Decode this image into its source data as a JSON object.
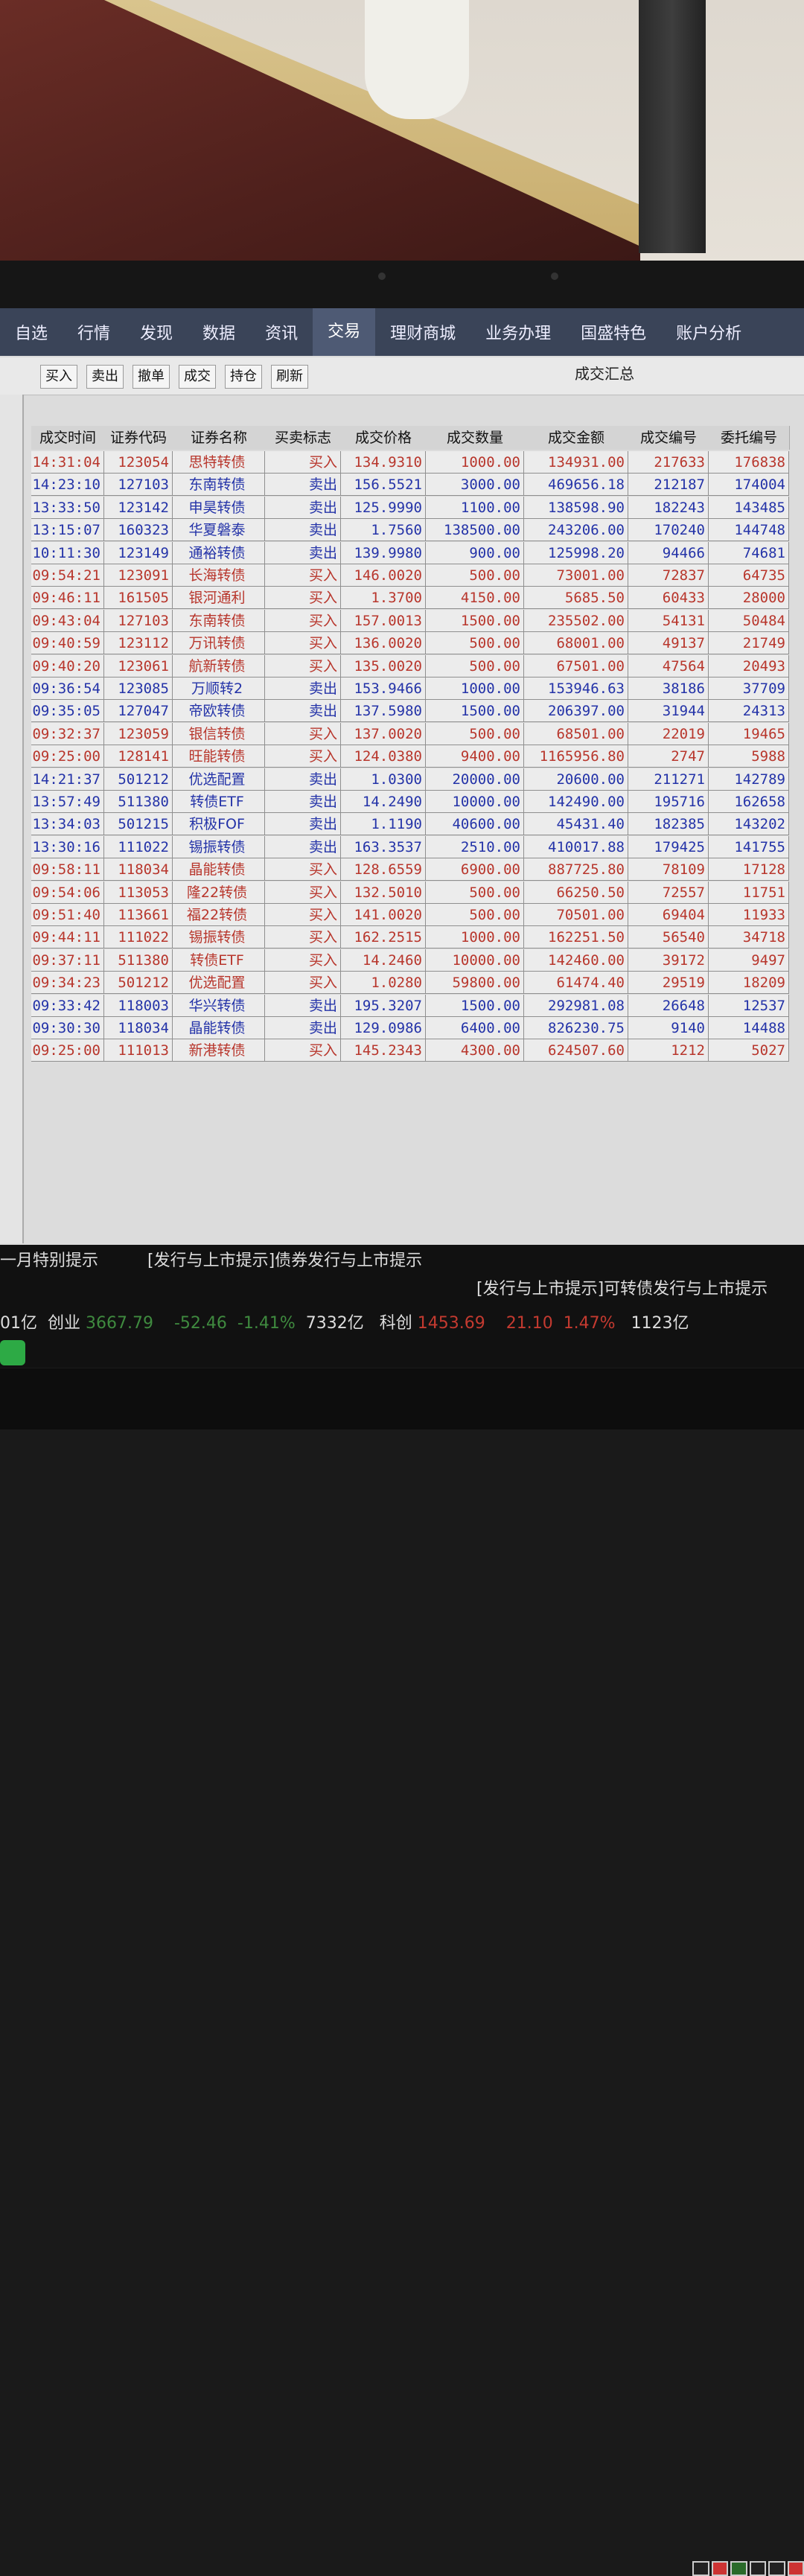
{
  "menu": [
    "自选",
    "行情",
    "发现",
    "数据",
    "资讯",
    "交易",
    "理财商城",
    "业务办理",
    "国盛特色",
    "账户分析"
  ],
  "menu_active": "交易",
  "toolbar": {
    "buy": "买入",
    "sell": "卖出",
    "cancel": "撤单",
    "deals": "成交",
    "holdings": "持仓",
    "refresh": "刷新"
  },
  "panel_title": "成交汇总",
  "columns": [
    "成交时间",
    "证券代码",
    "证券名称",
    "买卖标志",
    "成交价格",
    "成交数量",
    "成交金额",
    "成交编号",
    "委托编号"
  ],
  "colors": {
    "buy": "#b8362c",
    "sell": "#2433a8",
    "menubar": "#3a4458"
  },
  "rows": [
    [
      "14:31:04",
      "123054",
      "思特转债",
      "买入",
      "134.9310",
      "1000.00",
      "134931.00",
      "217633",
      "176838"
    ],
    [
      "14:23:10",
      "127103",
      "东南转债",
      "卖出",
      "156.5521",
      "3000.00",
      "469656.18",
      "212187",
      "174004"
    ],
    [
      "13:33:50",
      "123142",
      "申昊转债",
      "卖出",
      "125.9990",
      "1100.00",
      "138598.90",
      "182243",
      "143485"
    ],
    [
      "13:15:07",
      "160323",
      "华夏磐泰",
      "卖出",
      "1.7560",
      "138500.00",
      "243206.00",
      "170240",
      "144748"
    ],
    [
      "10:11:30",
      "123149",
      "通裕转债",
      "卖出",
      "139.9980",
      "900.00",
      "125998.20",
      "94466",
      "74681"
    ],
    [
      "09:54:21",
      "123091",
      "长海转债",
      "买入",
      "146.0020",
      "500.00",
      "73001.00",
      "72837",
      "64735"
    ],
    [
      "09:46:11",
      "161505",
      "银河通利",
      "买入",
      "1.3700",
      "4150.00",
      "5685.50",
      "60433",
      "28000"
    ],
    [
      "09:43:04",
      "127103",
      "东南转债",
      "买入",
      "157.0013",
      "1500.00",
      "235502.00",
      "54131",
      "50484"
    ],
    [
      "09:40:59",
      "123112",
      "万讯转债",
      "买入",
      "136.0020",
      "500.00",
      "68001.00",
      "49137",
      "21749"
    ],
    [
      "09:40:20",
      "123061",
      "航新转债",
      "买入",
      "135.0020",
      "500.00",
      "67501.00",
      "47564",
      "20493"
    ],
    [
      "09:36:54",
      "123085",
      "万顺转2",
      "卖出",
      "153.9466",
      "1000.00",
      "153946.63",
      "38186",
      "37709"
    ],
    [
      "09:35:05",
      "127047",
      "帝欧转债",
      "卖出",
      "137.5980",
      "1500.00",
      "206397.00",
      "31944",
      "24313"
    ],
    [
      "09:32:37",
      "123059",
      "银信转债",
      "买入",
      "137.0020",
      "500.00",
      "68501.00",
      "22019",
      "19465"
    ],
    [
      "09:25:00",
      "128141",
      "旺能转债",
      "买入",
      "124.0380",
      "9400.00",
      "1165956.80",
      "2747",
      "5988"
    ],
    [
      "14:21:37",
      "501212",
      "优选配置",
      "卖出",
      "1.0300",
      "20000.00",
      "20600.00",
      "211271",
      "142789"
    ],
    [
      "13:57:49",
      "511380",
      "转债ETF",
      "卖出",
      "14.2490",
      "10000.00",
      "142490.00",
      "195716",
      "162658"
    ],
    [
      "13:34:03",
      "501215",
      "积极FOF",
      "卖出",
      "1.1190",
      "40600.00",
      "45431.40",
      "182385",
      "143202"
    ],
    [
      "13:30:16",
      "111022",
      "锡振转债",
      "卖出",
      "163.3537",
      "2510.00",
      "410017.88",
      "179425",
      "141755"
    ],
    [
      "09:58:11",
      "118034",
      "晶能转债",
      "买入",
      "128.6559",
      "6900.00",
      "887725.80",
      "78109",
      "17128"
    ],
    [
      "09:54:06",
      "113053",
      "隆22转债",
      "买入",
      "132.5010",
      "500.00",
      "66250.50",
      "72557",
      "11751"
    ],
    [
      "09:51:40",
      "113661",
      "福22转债",
      "买入",
      "141.0020",
      "500.00",
      "70501.00",
      "69404",
      "11933"
    ],
    [
      "09:44:11",
      "111022",
      "锡振转债",
      "买入",
      "162.2515",
      "1000.00",
      "162251.50",
      "56540",
      "34718"
    ],
    [
      "09:37:11",
      "511380",
      "转债ETF",
      "买入",
      "14.2460",
      "10000.00",
      "142460.00",
      "39172",
      "9497"
    ],
    [
      "09:34:23",
      "501212",
      "优选配置",
      "买入",
      "1.0280",
      "59800.00",
      "61474.40",
      "29519",
      "18209"
    ],
    [
      "09:33:42",
      "118003",
      "华兴转债",
      "卖出",
      "195.3207",
      "1500.00",
      "292981.08",
      "26648",
      "12537"
    ],
    [
      "09:30:30",
      "118034",
      "晶能转债",
      "卖出",
      "129.0986",
      "6400.00",
      "826230.75",
      "9140",
      "14488"
    ],
    [
      "09:25:00",
      "111013",
      "新港转债",
      "买入",
      "145.2343",
      "4300.00",
      "624507.60",
      "1212",
      "5027"
    ]
  ],
  "status": {
    "ticker1": "一月特别提示",
    "ticker2": "[发行与上市提示]债券发行与上市提示",
    "ticker3": "[发行与上市提示]可转债发行与上市提示",
    "prev_amount": "01亿",
    "chinext_label": "创业",
    "chinext_value": "3667.79",
    "chinext_change": "-52.46",
    "chinext_pct": "-1.41%",
    "chinext_amount": "7332亿",
    "star_label": "科创",
    "star_value": "1453.69",
    "star_change": "21.10",
    "star_pct": "1.47%",
    "star_amount": "1123亿"
  }
}
